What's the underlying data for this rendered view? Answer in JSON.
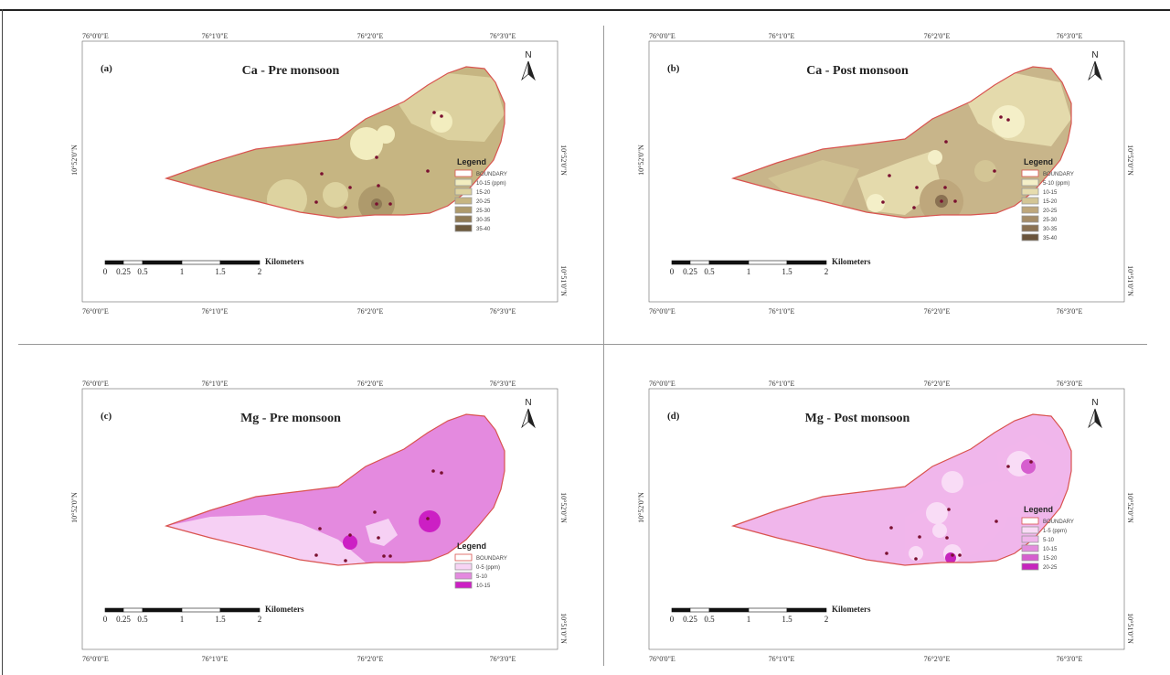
{
  "panels": [
    {
      "id": "a",
      "label": "(a)",
      "title": "Ca - Pre monsoon",
      "top_coords": [
        "76°0'0\"E",
        "76°1'0\"E",
        "76°2'0\"E",
        "76°3'0\"E"
      ],
      "bottom_coords": [
        "76°0'0\"E",
        "76°1'0\"E",
        "76°2'0\"E",
        "76°3'0\"E"
      ],
      "left_lat": "10°52'0\"N",
      "right_lats": [
        "10°52'0\"N",
        "10°51'0\"N"
      ],
      "legend_title": "Legend",
      "legend_items": [
        {
          "label": "BOUNDARY",
          "color": "#ffffff",
          "boundary": true
        },
        {
          "label": "10-15 (ppm)",
          "color": "#f2edbf"
        },
        {
          "label": "15-20",
          "color": "#ddd3a0"
        },
        {
          "label": "20-25",
          "color": "#c6b582"
        },
        {
          "label": "25-30",
          "color": "#ae9a6c"
        },
        {
          "label": "30-35",
          "color": "#8f7a55"
        },
        {
          "label": "35-40",
          "color": "#6e5a3e"
        }
      ],
      "base_color": "#c6b582",
      "scale_labels": [
        "0",
        "0.25",
        "0.5",
        "1",
        "1.5",
        "2"
      ],
      "scale_unit": "Kilometers"
    },
    {
      "id": "b",
      "label": "(b)",
      "title": "Ca - Post monsoon",
      "top_coords": [
        "76°0'0\"E",
        "76°1'0\"E",
        "76°2'0\"E",
        "76°3'0\"E"
      ],
      "bottom_coords": [
        "76°0'0\"E",
        "76°1'0\"E",
        "76°2'0\"E",
        "76°3'0\"E"
      ],
      "left_lat": "10°52'0\"N",
      "right_lats": [
        "10°52'0\"N",
        "10°51'0\"N"
      ],
      "legend_title": "Legend",
      "legend_items": [
        {
          "label": "BOUNDARY",
          "color": "#ffffff",
          "boundary": true
        },
        {
          "label": "5-10 (ppm)",
          "color": "#f4efc8"
        },
        {
          "label": "10-15",
          "color": "#e6dcae"
        },
        {
          "label": "15-20",
          "color": "#d3c595"
        },
        {
          "label": "20-25",
          "color": "#bea77c"
        },
        {
          "label": "25-30",
          "color": "#a58c68"
        },
        {
          "label": "30-35",
          "color": "#8a7152"
        },
        {
          "label": "35-40",
          "color": "#6a543c"
        }
      ],
      "base_color": "#c8b58a",
      "scale_labels": [
        "0",
        "0.25",
        "0.5",
        "1",
        "1.5",
        "2"
      ],
      "scale_unit": "Kilometers"
    },
    {
      "id": "c",
      "label": "(c)",
      "title": "Mg - Pre monsoon",
      "top_coords": [
        "76°0'0\"E",
        "76°1'0\"E",
        "76°2'0\"E",
        "76°3'0\"E"
      ],
      "bottom_coords": [
        "76°0'0\"E",
        "76°1'0\"E",
        "76°2'0\"E",
        "76°3'0\"E"
      ],
      "left_lat": "10°52'0\"N",
      "right_lats": [
        "10°52'0\"N",
        "10°51'0\"N"
      ],
      "legend_title": "Legend",
      "legend_items": [
        {
          "label": "BOUNDARY",
          "color": "#ffffff",
          "boundary": true
        },
        {
          "label": "0-5 (ppm)",
          "color": "#f7d4f4"
        },
        {
          "label": "5-10",
          "color": "#e48adf"
        },
        {
          "label": "10-15",
          "color": "#cc1fc4"
        }
      ],
      "base_color": "#e48adf",
      "scale_labels": [
        "0",
        "0.25",
        "0.5",
        "1",
        "1.5",
        "2"
      ],
      "scale_unit": "Kilometers"
    },
    {
      "id": "d",
      "label": "(d)",
      "title": "Mg - Post monsoon",
      "top_coords": [
        "76°0'0\"E",
        "76°1'0\"E",
        "76°2'0\"E",
        "76°3'0\"E"
      ],
      "bottom_coords": [
        "76°0'0\"E",
        "76°1'0\"E",
        "76°2'0\"E",
        "76°3'0\"E"
      ],
      "left_lat": "10°52'0\"N",
      "right_lats": [
        "10°52'0\"N",
        "10°51'0\"N"
      ],
      "legend_title": "Legend",
      "legend_items": [
        {
          "label": "BOUNDARY",
          "color": "#ffffff",
          "boundary": true
        },
        {
          "label": "1-5 (ppm)",
          "color": "#f9dcf6"
        },
        {
          "label": "5-10",
          "color": "#f0b6eb"
        },
        {
          "label": "10-15",
          "color": "#e38ddd"
        },
        {
          "label": "15-20",
          "color": "#d65fcf"
        },
        {
          "label": "20-25",
          "color": "#c625bd"
        }
      ],
      "base_color": "#f0b6eb",
      "scale_labels": [
        "0",
        "0.25",
        "0.5",
        "1",
        "1.5",
        "2"
      ],
      "scale_unit": "Kilometers"
    }
  ],
  "north_label": "N",
  "icons": {
    "north_arrow": "north-arrow-icon"
  }
}
